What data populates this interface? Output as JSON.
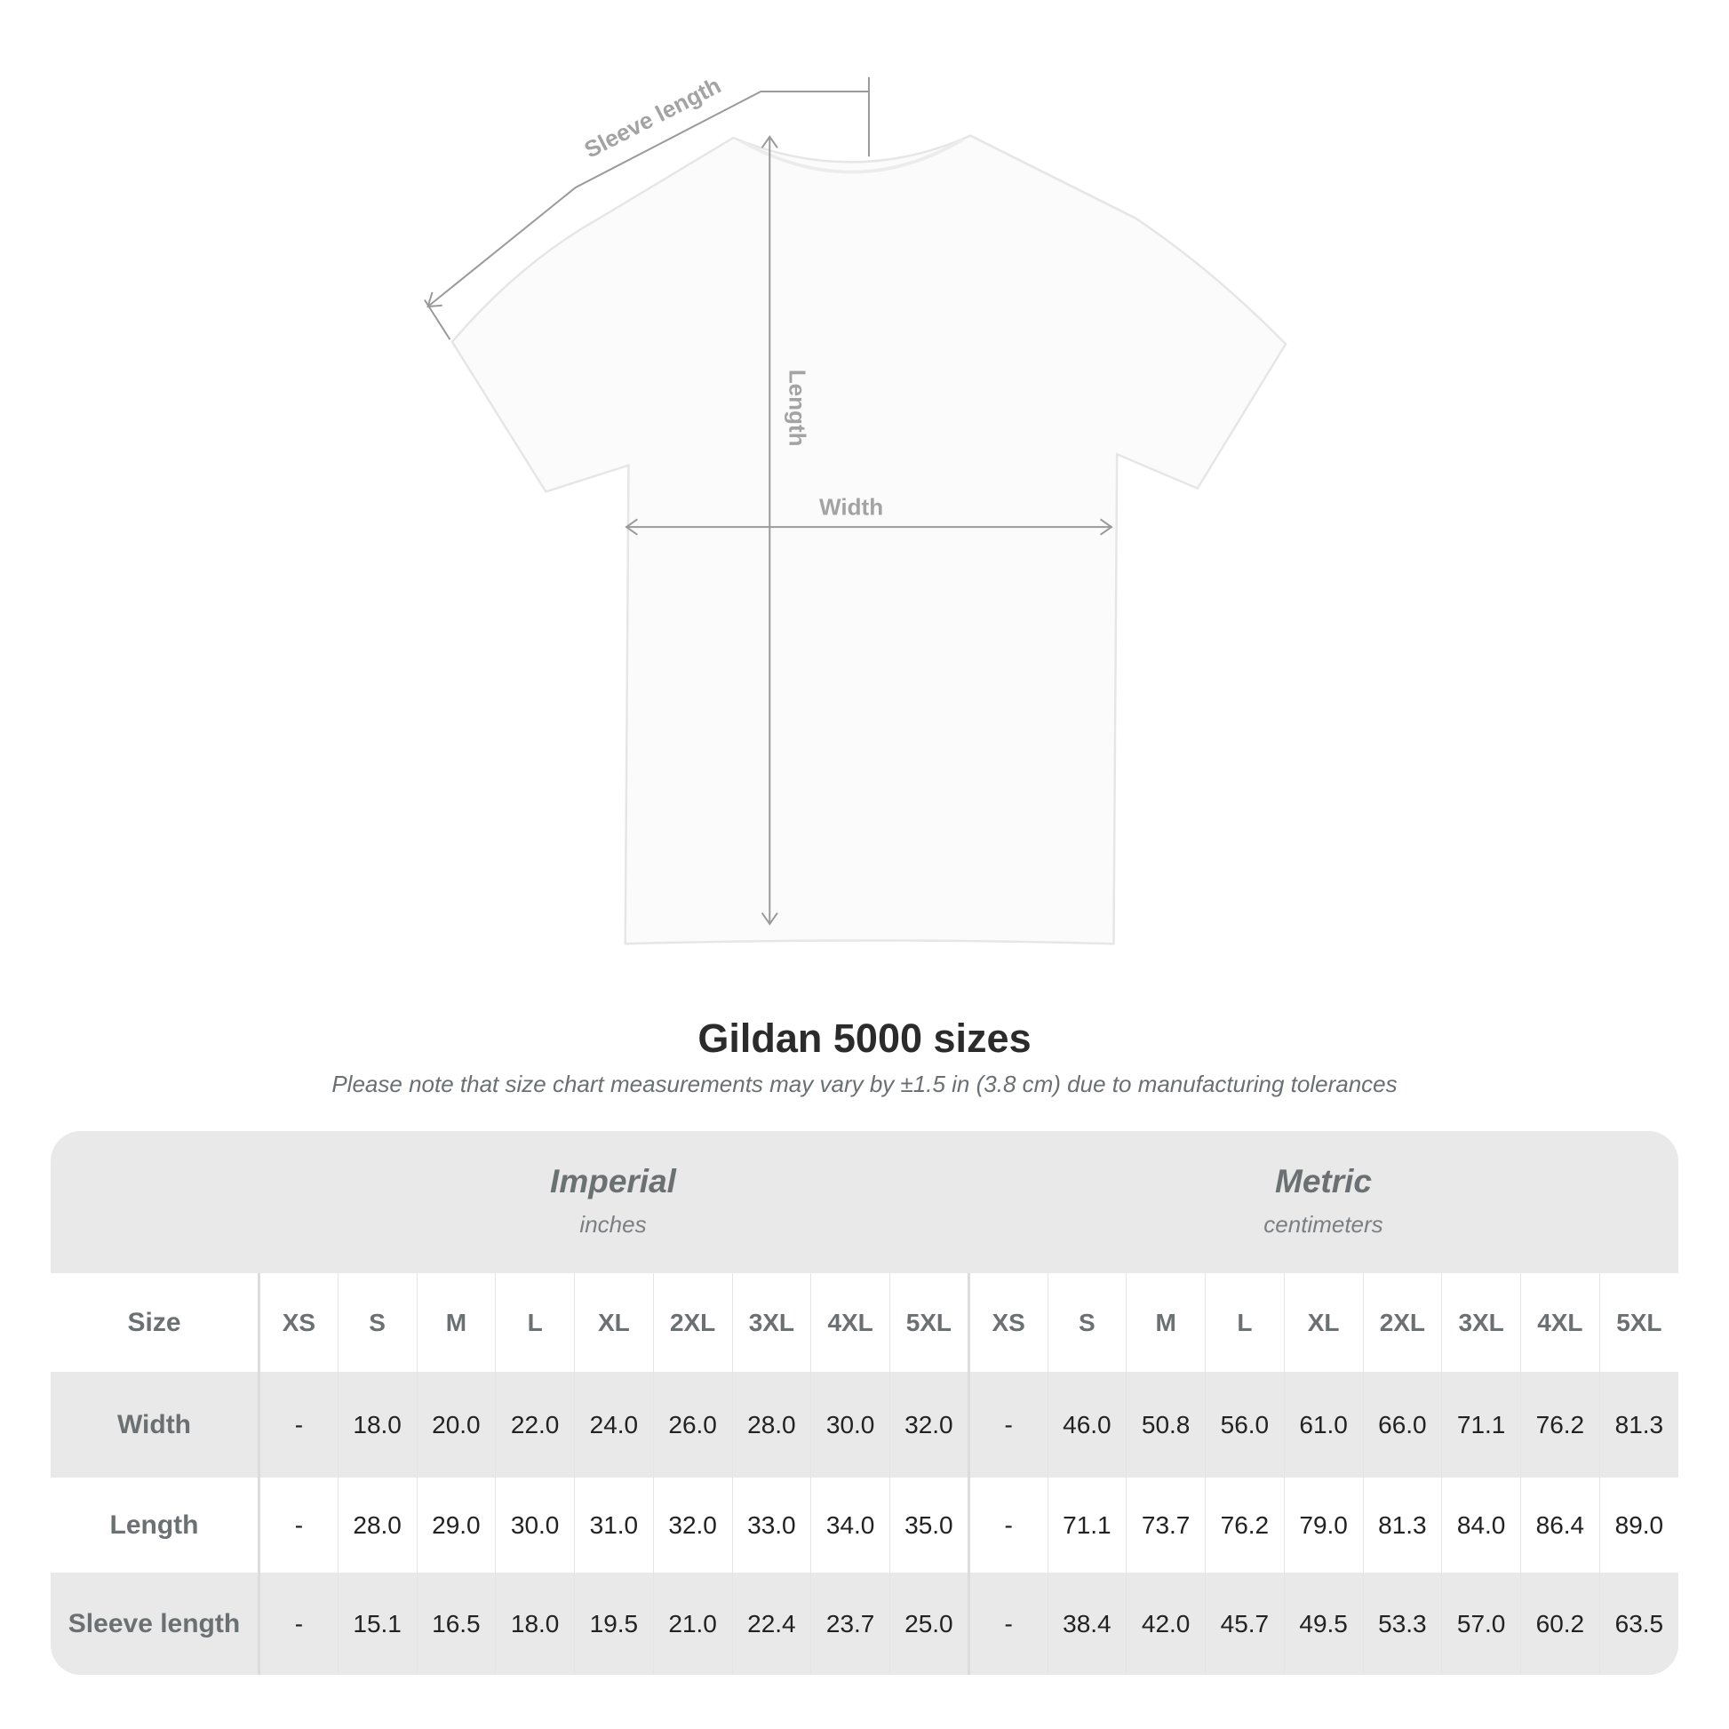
{
  "diagram": {
    "labels": {
      "sleeve": "Sleeve length",
      "length": "Length",
      "width": "Width"
    }
  },
  "title": "Gildan 5000 sizes",
  "note": "Please note that size chart measurements may vary by ±1.5 in (3.8 cm) due to manufacturing tolerances",
  "table": {
    "imperial": {
      "title": "Imperial",
      "unit": "inches"
    },
    "metric": {
      "title": "Metric",
      "unit": "centimeters"
    },
    "size_label": "Size",
    "sizes": [
      "XS",
      "S",
      "M",
      "L",
      "XL",
      "2XL",
      "3XL",
      "4XL",
      "5XL"
    ],
    "rows": [
      {
        "label": "Width",
        "imperial": [
          "-",
          "18.0",
          "20.0",
          "22.0",
          "24.0",
          "26.0",
          "28.0",
          "30.0",
          "32.0"
        ],
        "metric": [
          "-",
          "46.0",
          "50.8",
          "56.0",
          "61.0",
          "66.0",
          "71.1",
          "76.2",
          "81.3"
        ]
      },
      {
        "label": "Length",
        "imperial": [
          "-",
          "28.0",
          "29.0",
          "30.0",
          "31.0",
          "32.0",
          "33.0",
          "34.0",
          "35.0"
        ],
        "metric": [
          "-",
          "71.1",
          "73.7",
          "76.2",
          "79.0",
          "81.3",
          "84.0",
          "86.4",
          "89.0"
        ]
      },
      {
        "label": "Sleeve length",
        "imperial": [
          "-",
          "15.1",
          "16.5",
          "18.0",
          "19.5",
          "21.0",
          "22.4",
          "23.7",
          "25.0"
        ],
        "metric": [
          "-",
          "38.4",
          "42.0",
          "45.7",
          "49.5",
          "53.3",
          "57.0",
          "60.2",
          "63.5"
        ]
      }
    ]
  }
}
